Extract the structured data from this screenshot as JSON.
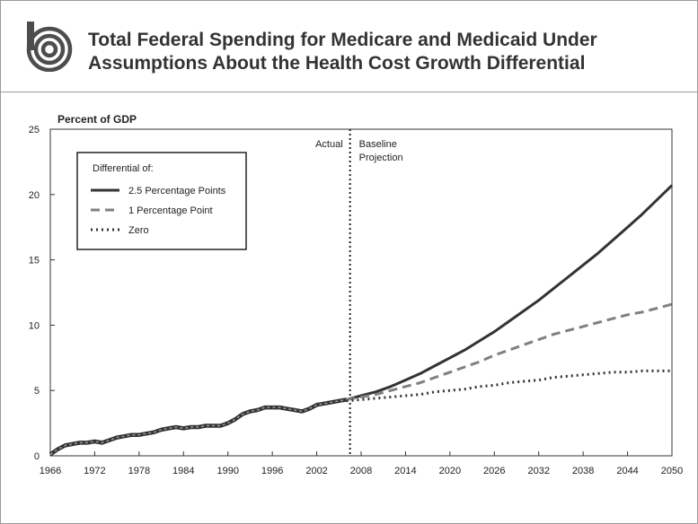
{
  "title_line1": "Total Federal Spending for Medicare and Medicaid Under",
  "title_line2": "Assumptions About the Health Cost Growth Differential",
  "logo_icon": "cbo-logo-icon",
  "chart_data": {
    "type": "line",
    "ylabel": "Percent of GDP",
    "xlim": [
      1966,
      2050
    ],
    "ylim": [
      0,
      25
    ],
    "yticks": [
      0,
      5,
      10,
      15,
      20,
      25
    ],
    "xticks": [
      1966,
      1972,
      1978,
      1984,
      1990,
      1996,
      2002,
      2008,
      2014,
      2020,
      2026,
      2032,
      2038,
      2044,
      2050
    ],
    "grid": false,
    "divider": {
      "x": 2006.5,
      "left_label": "Actual",
      "right_label_1": "Baseline",
      "right_label_2": "Projection"
    },
    "legend": {
      "title": "Differential of:",
      "position": "top-left"
    },
    "actual": {
      "x": [
        1966,
        1967,
        1968,
        1969,
        1970,
        1971,
        1972,
        1973,
        1974,
        1975,
        1976,
        1977,
        1978,
        1979,
        1980,
        1981,
        1982,
        1983,
        1984,
        1985,
        1986,
        1987,
        1988,
        1989,
        1990,
        1991,
        1992,
        1993,
        1994,
        1995,
        1996,
        1997,
        1998,
        1999,
        2000,
        2001,
        2002,
        2003,
        2004,
        2005,
        2006
      ],
      "y": [
        0.1,
        0.5,
        0.8,
        0.9,
        1.0,
        1.0,
        1.1,
        1.0,
        1.2,
        1.4,
        1.5,
        1.6,
        1.6,
        1.7,
        1.8,
        2.0,
        2.1,
        2.2,
        2.1,
        2.2,
        2.2,
        2.3,
        2.3,
        2.3,
        2.5,
        2.8,
        3.2,
        3.4,
        3.5,
        3.7,
        3.7,
        3.7,
        3.6,
        3.5,
        3.4,
        3.6,
        3.9,
        4.0,
        4.1,
        4.2,
        4.3
      ]
    },
    "series": [
      {
        "name": "2.5 Percentage Points",
        "color": "#333333",
        "style": "solid",
        "x": [
          2006,
          2008,
          2010,
          2012,
          2014,
          2016,
          2018,
          2020,
          2022,
          2024,
          2026,
          2028,
          2030,
          2032,
          2034,
          2036,
          2038,
          2040,
          2042,
          2044,
          2046,
          2048,
          2050
        ],
        "y": [
          4.3,
          4.6,
          4.9,
          5.3,
          5.8,
          6.3,
          6.9,
          7.5,
          8.1,
          8.8,
          9.5,
          10.3,
          11.1,
          11.9,
          12.8,
          13.7,
          14.6,
          15.5,
          16.5,
          17.5,
          18.5,
          19.6,
          20.7
        ]
      },
      {
        "name": "1 Percentage Point",
        "color": "#808080",
        "style": "dashed",
        "x": [
          2006,
          2008,
          2010,
          2012,
          2014,
          2016,
          2018,
          2020,
          2022,
          2024,
          2026,
          2028,
          2030,
          2032,
          2034,
          2036,
          2038,
          2040,
          2042,
          2044,
          2046,
          2048,
          2050
        ],
        "y": [
          4.3,
          4.5,
          4.7,
          5.0,
          5.3,
          5.6,
          6.0,
          6.4,
          6.8,
          7.2,
          7.7,
          8.1,
          8.5,
          8.9,
          9.3,
          9.6,
          9.9,
          10.2,
          10.5,
          10.8,
          11.0,
          11.3,
          11.6
        ]
      },
      {
        "name": "Zero",
        "color": "#333333",
        "style": "dotted",
        "x": [
          2006,
          2008,
          2010,
          2012,
          2014,
          2016,
          2018,
          2020,
          2022,
          2024,
          2026,
          2028,
          2030,
          2032,
          2034,
          2036,
          2038,
          2040,
          2042,
          2044,
          2046,
          2048,
          2050
        ],
        "y": [
          4.2,
          4.3,
          4.4,
          4.5,
          4.6,
          4.7,
          4.9,
          5.0,
          5.1,
          5.3,
          5.4,
          5.6,
          5.7,
          5.8,
          6.0,
          6.1,
          6.2,
          6.3,
          6.4,
          6.4,
          6.5,
          6.5,
          6.5
        ]
      }
    ]
  }
}
